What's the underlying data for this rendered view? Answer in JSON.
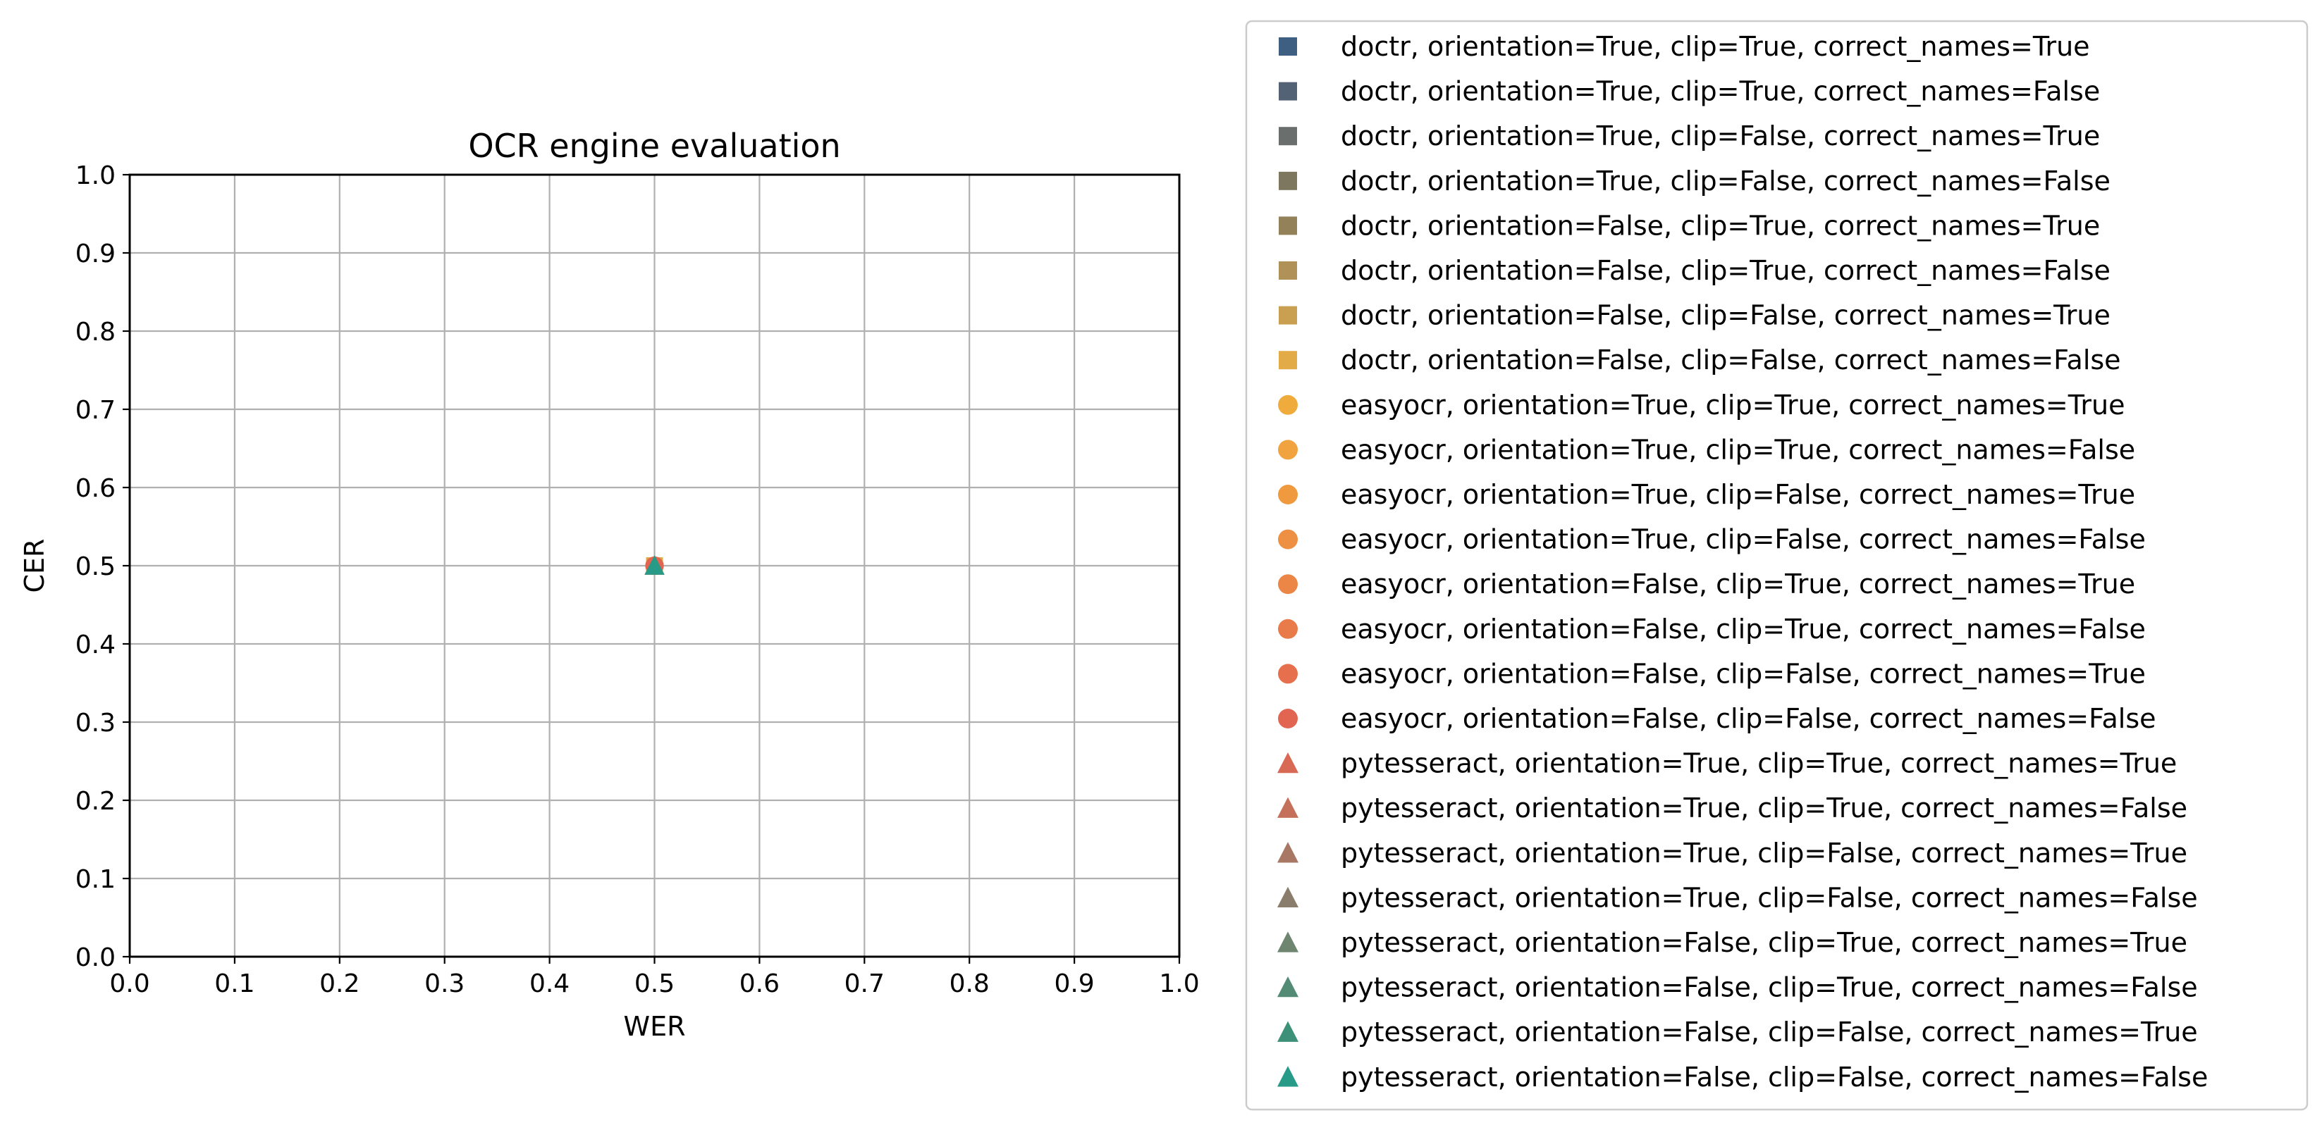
{
  "chart_data": {
    "type": "scatter",
    "title": "OCR engine evaluation",
    "xlabel": "WER",
    "ylabel": "CER",
    "xlim": [
      0.0,
      1.0
    ],
    "ylim": [
      0.0,
      1.0
    ],
    "xticks": [
      "0.0",
      "0.1",
      "0.2",
      "0.3",
      "0.4",
      "0.5",
      "0.6",
      "0.7",
      "0.8",
      "0.9",
      "1.0"
    ],
    "yticks": [
      "0.0",
      "0.1",
      "0.2",
      "0.3",
      "0.4",
      "0.5",
      "0.6",
      "0.7",
      "0.8",
      "0.9",
      "1.0"
    ],
    "grid": true,
    "legend_position": "outside right",
    "series": [
      {
        "name": "doctr, orientation=True, clip=True, correct_names=True",
        "marker": "square",
        "color": "#3f5f82",
        "x": [
          0.5
        ],
        "y": [
          0.5
        ]
      },
      {
        "name": "doctr, orientation=True, clip=True, correct_names=False",
        "marker": "square",
        "color": "#536375",
        "x": [
          0.5
        ],
        "y": [
          0.5
        ]
      },
      {
        "name": "doctr, orientation=True, clip=False, correct_names=True",
        "marker": "square",
        "color": "#6a6e6c",
        "x": [
          0.5
        ],
        "y": [
          0.5
        ]
      },
      {
        "name": "doctr, orientation=True, clip=False, correct_names=False",
        "marker": "square",
        "color": "#7d7760",
        "x": [
          0.5
        ],
        "y": [
          0.5
        ]
      },
      {
        "name": "doctr, orientation=False, clip=True, correct_names=True",
        "marker": "square",
        "color": "#938259",
        "x": [
          0.5
        ],
        "y": [
          0.5
        ]
      },
      {
        "name": "doctr, orientation=False, clip=True, correct_names=False",
        "marker": "square",
        "color": "#b09158",
        "x": [
          0.5
        ],
        "y": [
          0.5
        ]
      },
      {
        "name": "doctr, orientation=False, clip=False, correct_names=True",
        "marker": "square",
        "color": "#c9a052",
        "x": [
          0.5
        ],
        "y": [
          0.5
        ]
      },
      {
        "name": "doctr, orientation=False, clip=False, correct_names=False",
        "marker": "square",
        "color": "#e3ab47",
        "x": [
          0.5
        ],
        "y": [
          0.5
        ]
      },
      {
        "name": "easyocr, orientation=True, clip=True, correct_names=True",
        "marker": "circle",
        "color": "#efac3c",
        "x": [
          0.5
        ],
        "y": [
          0.5
        ]
      },
      {
        "name": "easyocr, orientation=True, clip=True, correct_names=False",
        "marker": "circle",
        "color": "#f0a33e",
        "x": [
          0.5
        ],
        "y": [
          0.5
        ]
      },
      {
        "name": "easyocr, orientation=True, clip=False, correct_names=True",
        "marker": "circle",
        "color": "#f09a40",
        "x": [
          0.5
        ],
        "y": [
          0.5
        ]
      },
      {
        "name": "easyocr, orientation=True, clip=False, correct_names=False",
        "marker": "circle",
        "color": "#ee9043",
        "x": [
          0.5
        ],
        "y": [
          0.5
        ]
      },
      {
        "name": "easyocr, orientation=False, clip=True, correct_names=True",
        "marker": "circle",
        "color": "#ec8646",
        "x": [
          0.5
        ],
        "y": [
          0.5
        ]
      },
      {
        "name": "easyocr, orientation=False, clip=True, correct_names=False",
        "marker": "circle",
        "color": "#e97b4a",
        "x": [
          0.5
        ],
        "y": [
          0.5
        ]
      },
      {
        "name": "easyocr, orientation=False, clip=False, correct_names=True",
        "marker": "circle",
        "color": "#e6704d",
        "x": [
          0.5
        ],
        "y": [
          0.5
        ]
      },
      {
        "name": "easyocr, orientation=False, clip=False, correct_names=False",
        "marker": "circle",
        "color": "#e26551",
        "x": [
          0.5
        ],
        "y": [
          0.5
        ]
      },
      {
        "name": "pytesseract, orientation=True, clip=True, correct_names=True",
        "marker": "triangle",
        "color": "#d86a55",
        "x": [
          0.5
        ],
        "y": [
          0.5
        ]
      },
      {
        "name": "pytesseract, orientation=True, clip=True, correct_names=False",
        "marker": "triangle",
        "color": "#c4705a",
        "x": [
          0.5
        ],
        "y": [
          0.5
        ]
      },
      {
        "name": "pytesseract, orientation=True, clip=False, correct_names=True",
        "marker": "triangle",
        "color": "#a87865",
        "x": [
          0.5
        ],
        "y": [
          0.5
        ]
      },
      {
        "name": "pytesseract, orientation=True, clip=False, correct_names=False",
        "marker": "triangle",
        "color": "#8b7d6c",
        "x": [
          0.5
        ],
        "y": [
          0.5
        ]
      },
      {
        "name": "pytesseract, orientation=False, clip=True, correct_names=True",
        "marker": "triangle",
        "color": "#6e8570",
        "x": [
          0.5
        ],
        "y": [
          0.5
        ]
      },
      {
        "name": "pytesseract, orientation=False, clip=True, correct_names=False",
        "marker": "triangle",
        "color": "#538b75",
        "x": [
          0.5
        ],
        "y": [
          0.5
        ]
      },
      {
        "name": "pytesseract, orientation=False, clip=False, correct_names=True",
        "marker": "triangle",
        "color": "#3e9179",
        "x": [
          0.5
        ],
        "y": [
          0.5
        ]
      },
      {
        "name": "pytesseract, orientation=False, clip=False, correct_names=False",
        "marker": "triangle",
        "color": "#279a88",
        "x": [
          0.5
        ],
        "y": [
          0.5
        ]
      }
    ]
  }
}
